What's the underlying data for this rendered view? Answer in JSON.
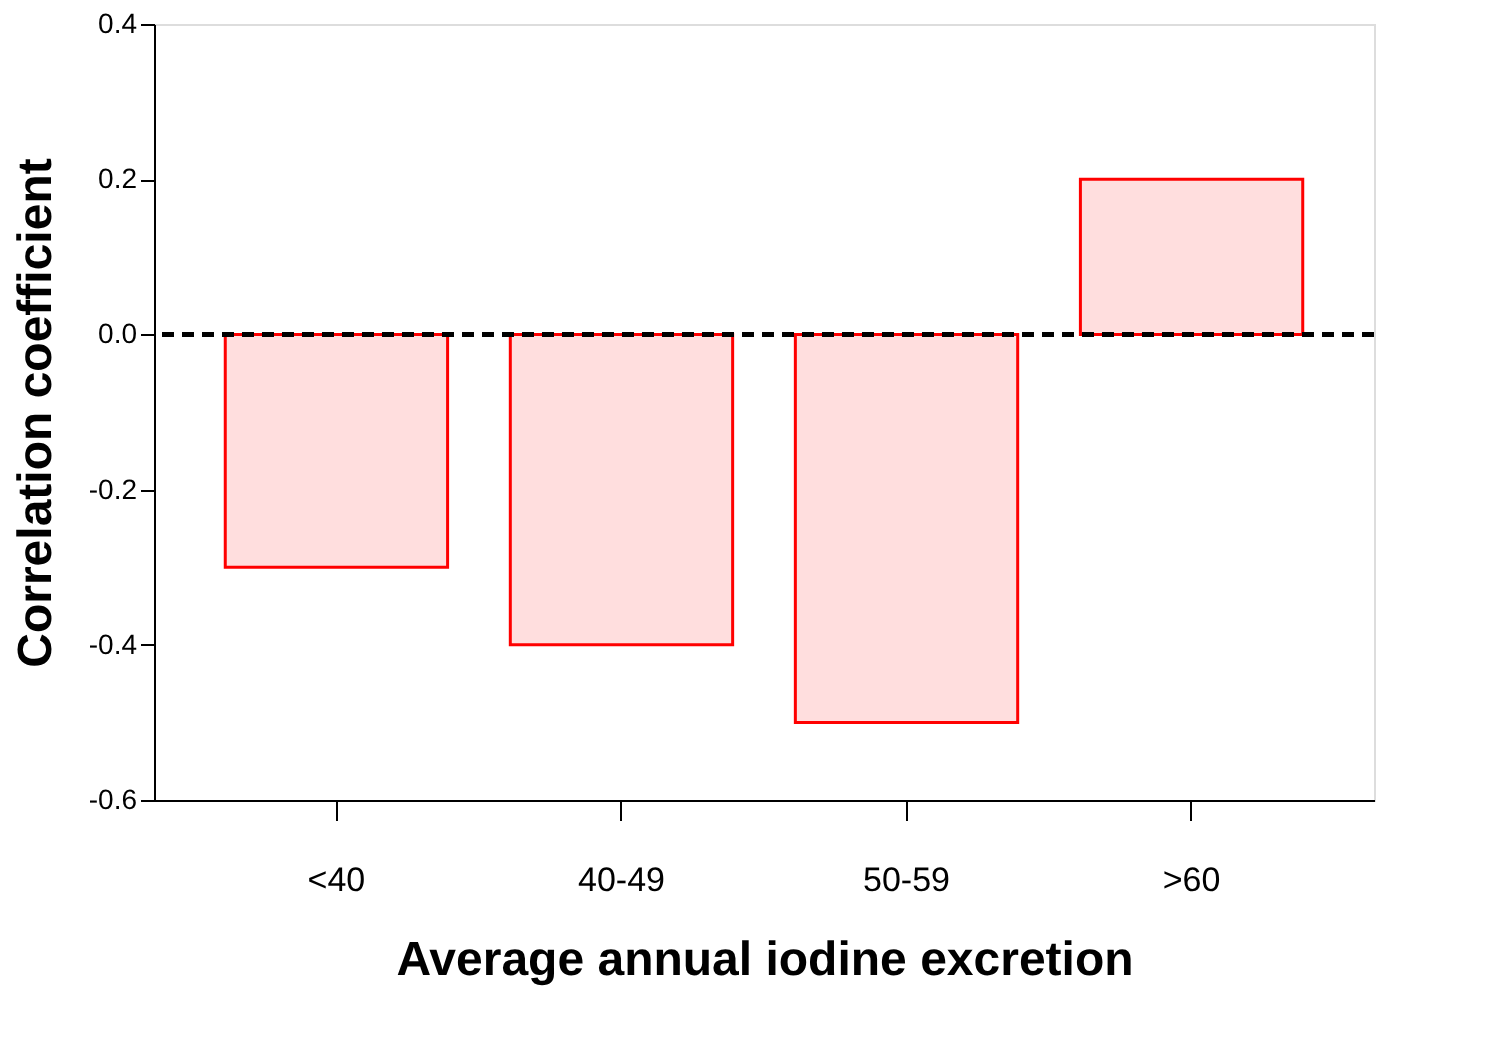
{
  "chart_data": {
    "type": "bar",
    "xlabel": "Average annual iodine excretion",
    "ylabel": "Correlation coefficient",
    "categories": [
      "<40",
      "40-49",
      "50-59",
      ">60"
    ],
    "series": [
      {
        "color": "#ff0000",
        "values": [
          -0.3,
          -0.4,
          -0.5,
          0.2
        ]
      }
    ],
    "ylim": [
      -0.6,
      0.4
    ],
    "yticks": [
      {
        "value": -0.6,
        "label": "-0.6"
      },
      -0.4,
      -0.2,
      {
        "value": 0,
        "label": "0.0"
      },
      0.2,
      0.4
    ],
    "ref_lines": [
      {
        "axis": "y",
        "value": 0,
        "color": "#000000",
        "line_style": "dashed"
      }
    ],
    "grid": false
  }
}
